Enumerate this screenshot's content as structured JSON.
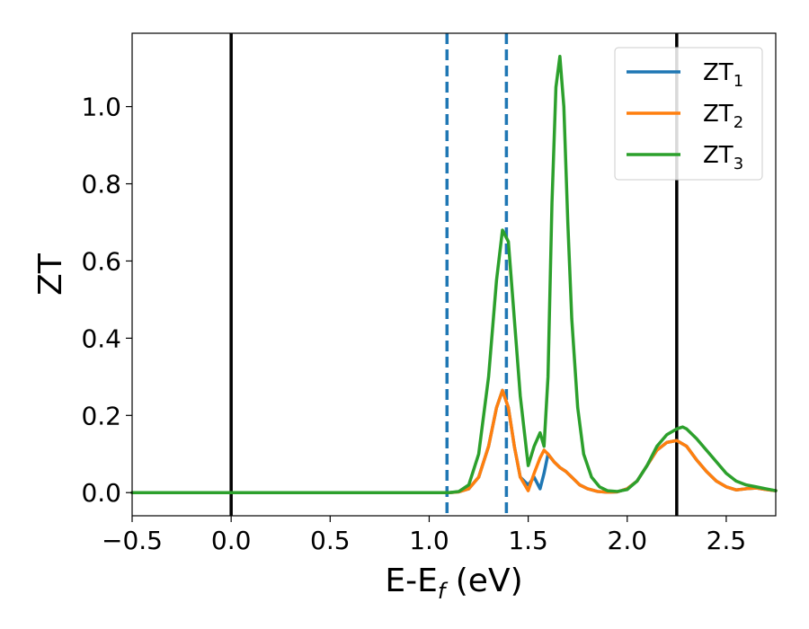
{
  "chart_data": {
    "type": "line",
    "xlabel": "E-E",
    "xlabel_sub": "f",
    "xlabel_unit": " (eV)",
    "ylabel": "ZT",
    "xlim": [
      -0.5,
      2.75
    ],
    "ylim": [
      -0.06,
      1.19
    ],
    "xticks": [
      {
        "value": -0.5,
        "label": "−0.5"
      },
      {
        "value": 0.0,
        "label": "0.0"
      },
      {
        "value": 0.5,
        "label": "0.5"
      },
      {
        "value": 1.0,
        "label": "1.0"
      },
      {
        "value": 1.5,
        "label": "1.5"
      },
      {
        "value": 2.0,
        "label": "2.0"
      },
      {
        "value": 2.5,
        "label": "2.5"
      }
    ],
    "yticks": [
      {
        "value": 0.0,
        "label": "0.0"
      },
      {
        "value": 0.2,
        "label": "0.2"
      },
      {
        "value": 0.4,
        "label": "0.4"
      },
      {
        "value": 0.6,
        "label": "0.6"
      },
      {
        "value": 0.8,
        "label": "0.8"
      },
      {
        "value": 1.0,
        "label": "1.0"
      }
    ],
    "grid": false,
    "legend_position": "top-right",
    "vlines": [
      {
        "x": 0.0,
        "color": "#000000",
        "style": "solid"
      },
      {
        "x": 2.25,
        "color": "#000000",
        "style": "solid"
      },
      {
        "x": 1.09,
        "color": "#1f77b4",
        "style": "dashed"
      },
      {
        "x": 1.39,
        "color": "#1f77b4",
        "style": "dashed"
      }
    ],
    "series": [
      {
        "name": "ZT",
        "name_sub": "1",
        "color": "#1f77b4",
        "x": [
          -0.5,
          1.0,
          1.1,
          1.15,
          1.2,
          1.25,
          1.3,
          1.34,
          1.37,
          1.4,
          1.43,
          1.46,
          1.5,
          1.53,
          1.56,
          1.58,
          1.6,
          1.63,
          1.66,
          1.69,
          1.72,
          1.76,
          1.8,
          1.85,
          1.9,
          1.95,
          2.0,
          2.05,
          2.1,
          2.15,
          2.2,
          2.25,
          2.3,
          2.35,
          2.4,
          2.45,
          2.5,
          2.55,
          2.6,
          2.65,
          2.7,
          2.75
        ],
        "y": [
          0.0,
          0.0,
          0.0,
          0.002,
          0.01,
          0.04,
          0.12,
          0.22,
          0.265,
          0.22,
          0.12,
          0.04,
          0.02,
          0.04,
          0.01,
          0.05,
          0.1,
          0.08,
          0.065,
          0.055,
          0.04,
          0.02,
          0.01,
          0.003,
          0.001,
          0.002,
          0.01,
          0.03,
          0.07,
          0.11,
          0.13,
          0.135,
          0.12,
          0.085,
          0.055,
          0.03,
          0.015,
          0.007,
          0.01,
          0.012,
          0.008,
          0.005
        ]
      },
      {
        "name": "ZT",
        "name_sub": "2",
        "color": "#ff7f0e",
        "x": [
          -0.5,
          1.0,
          1.1,
          1.15,
          1.2,
          1.25,
          1.3,
          1.34,
          1.37,
          1.4,
          1.43,
          1.46,
          1.5,
          1.53,
          1.56,
          1.58,
          1.6,
          1.63,
          1.66,
          1.69,
          1.72,
          1.76,
          1.8,
          1.85,
          1.9,
          1.95,
          2.0,
          2.05,
          2.1,
          2.15,
          2.2,
          2.25,
          2.3,
          2.35,
          2.4,
          2.45,
          2.5,
          2.55,
          2.6,
          2.65,
          2.7,
          2.75
        ],
        "y": [
          0.0,
          0.0,
          0.0,
          0.002,
          0.01,
          0.04,
          0.12,
          0.22,
          0.265,
          0.22,
          0.12,
          0.04,
          0.005,
          0.05,
          0.09,
          0.11,
          0.1,
          0.08,
          0.065,
          0.055,
          0.04,
          0.02,
          0.01,
          0.003,
          0.001,
          0.002,
          0.01,
          0.03,
          0.07,
          0.11,
          0.13,
          0.135,
          0.12,
          0.085,
          0.055,
          0.03,
          0.015,
          0.007,
          0.01,
          0.012,
          0.008,
          0.005
        ]
      },
      {
        "name": "ZT",
        "name_sub": "3",
        "color": "#2ca02c",
        "x": [
          -0.5,
          1.0,
          1.1,
          1.15,
          1.2,
          1.25,
          1.3,
          1.34,
          1.37,
          1.4,
          1.43,
          1.46,
          1.5,
          1.53,
          1.56,
          1.58,
          1.6,
          1.62,
          1.64,
          1.66,
          1.68,
          1.7,
          1.72,
          1.75,
          1.78,
          1.82,
          1.86,
          1.9,
          1.95,
          2.0,
          2.05,
          2.1,
          2.15,
          2.2,
          2.25,
          2.28,
          2.3,
          2.35,
          2.4,
          2.45,
          2.5,
          2.55,
          2.6,
          2.65,
          2.7,
          2.75
        ],
        "y": [
          0.0,
          0.0,
          0.0,
          0.003,
          0.02,
          0.1,
          0.3,
          0.55,
          0.68,
          0.65,
          0.45,
          0.25,
          0.07,
          0.12,
          0.155,
          0.12,
          0.3,
          0.75,
          1.05,
          1.13,
          1.0,
          0.7,
          0.45,
          0.22,
          0.1,
          0.04,
          0.015,
          0.005,
          0.003,
          0.008,
          0.03,
          0.07,
          0.12,
          0.15,
          0.165,
          0.17,
          0.165,
          0.14,
          0.11,
          0.08,
          0.05,
          0.03,
          0.02,
          0.015,
          0.01,
          0.005
        ]
      }
    ]
  }
}
